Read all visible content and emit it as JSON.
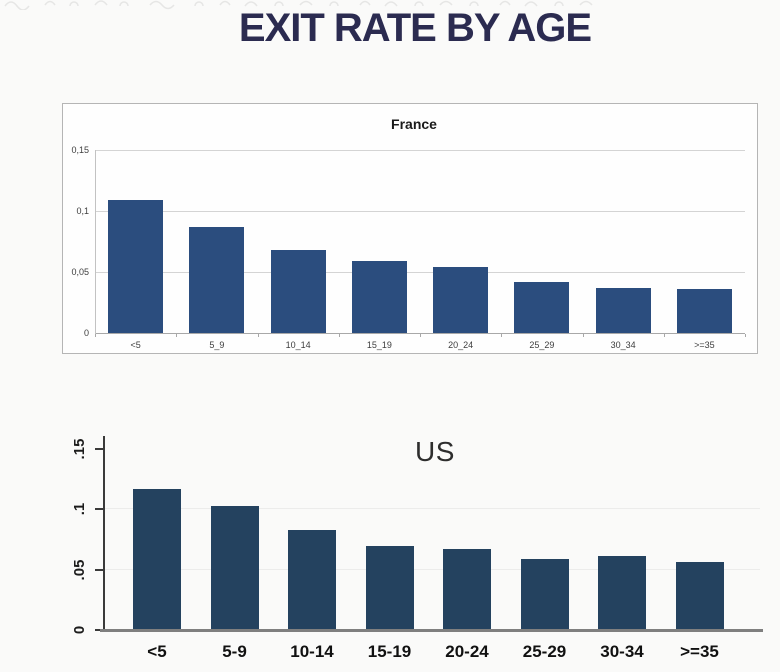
{
  "title": {
    "text": "EXIT RATE BY AGE"
  },
  "colors": {
    "title_navy": "#2b2b50",
    "france_bar": "#2b4d7e",
    "us_bar": "#24425f"
  },
  "chart_data": [
    {
      "id": "france",
      "type": "bar",
      "title": "France",
      "categories": [
        "<5",
        "5_9",
        "10_14",
        "15_19",
        "20_24",
        "25_29",
        "30_34",
        ">=35"
      ],
      "values": [
        0.109,
        0.087,
        0.068,
        0.059,
        0.054,
        0.042,
        0.037,
        0.036
      ],
      "yticks": [
        {
          "v": 0,
          "label": "0"
        },
        {
          "v": 0.05,
          "label": "0,05"
        },
        {
          "v": 0.1,
          "label": "0,1"
        },
        {
          "v": 0.15,
          "label": "0,15"
        }
      ],
      "ylim": [
        0,
        0.15
      ],
      "bar_color": "#2b4d7e",
      "grid": true,
      "framed_panel": true
    },
    {
      "id": "us",
      "type": "bar",
      "title": "US",
      "categories": [
        "<5",
        "5-9",
        "10-14",
        "15-19",
        "20-24",
        "25-29",
        "30-34",
        ">=35"
      ],
      "values": [
        0.116,
        0.102,
        0.082,
        0.069,
        0.066,
        0.058,
        0.06,
        0.055
      ],
      "yticks": [
        {
          "v": 0,
          "label": "0"
        },
        {
          "v": 0.05,
          "label": ".05"
        },
        {
          "v": 0.1,
          "label": ".1"
        },
        {
          "v": 0.15,
          "label": ".15"
        }
      ],
      "ylim": [
        0,
        0.15
      ],
      "bar_color": "#24425f",
      "grid": true,
      "framed_panel": false
    }
  ]
}
